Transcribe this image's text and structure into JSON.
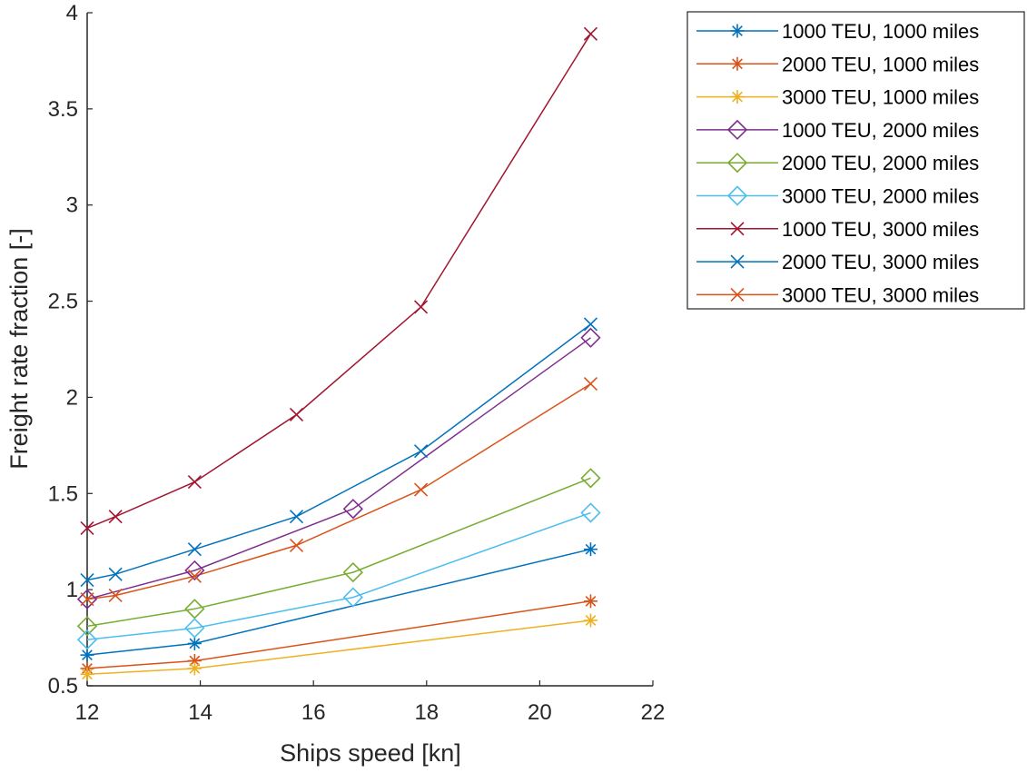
{
  "chart_data": {
    "type": "line",
    "title": "",
    "xlabel": "Ships speed [kn]",
    "ylabel": "Freight rate fraction [-]",
    "xlim": [
      12,
      22
    ],
    "ylim": [
      0.5,
      4
    ],
    "xticks": [
      12,
      14,
      16,
      18,
      20,
      22
    ],
    "yticks": [
      0.5,
      1,
      1.5,
      2,
      2.5,
      3,
      3.5,
      4
    ],
    "xtick_labels": [
      "12",
      "14",
      "16",
      "18",
      "20",
      "22"
    ],
    "ytick_labels": [
      "0.5",
      "1",
      "1.5",
      "2",
      "2.5",
      "3",
      "3.5",
      "4"
    ],
    "grid": false,
    "legend_position": "outside-top-right",
    "series": [
      {
        "name": "1000 TEU, 1000 miles",
        "color": "#0072BD",
        "marker": "asterisk",
        "x": [
          12,
          13.9,
          20.9
        ],
        "y": [
          0.66,
          0.72,
          1.21
        ]
      },
      {
        "name": "2000 TEU, 1000 miles",
        "color": "#D95319",
        "marker": "asterisk",
        "x": [
          12,
          13.9,
          20.9
        ],
        "y": [
          0.59,
          0.63,
          0.94
        ]
      },
      {
        "name": "3000 TEU, 1000 miles",
        "color": "#EDB120",
        "marker": "asterisk",
        "x": [
          12,
          13.9,
          20.9
        ],
        "y": [
          0.56,
          0.59,
          0.84
        ]
      },
      {
        "name": "1000 TEU, 2000 miles",
        "color": "#7E2F8E",
        "marker": "diamond",
        "x": [
          12,
          13.9,
          16.7,
          20.9
        ],
        "y": [
          0.95,
          1.1,
          1.42,
          2.31
        ]
      },
      {
        "name": "2000 TEU, 2000 miles",
        "color": "#77AC30",
        "marker": "diamond",
        "x": [
          12,
          13.9,
          16.7,
          20.9
        ],
        "y": [
          0.81,
          0.9,
          1.09,
          1.58
        ]
      },
      {
        "name": "3000 TEU, 2000 miles",
        "color": "#4DBEEE",
        "marker": "diamond",
        "x": [
          12,
          13.9,
          16.7,
          20.9
        ],
        "y": [
          0.74,
          0.8,
          0.96,
          1.4
        ]
      },
      {
        "name": "1000 TEU, 3000 miles",
        "color": "#A2142F",
        "marker": "x",
        "x": [
          12,
          12.5,
          13.9,
          15.7,
          17.9,
          20.9
        ],
        "y": [
          1.32,
          1.38,
          1.56,
          1.91,
          2.47,
          3.89
        ]
      },
      {
        "name": "2000 TEU, 3000 miles",
        "color": "#0072BD",
        "marker": "x",
        "x": [
          12,
          12.5,
          13.9,
          15.7,
          17.9,
          20.9
        ],
        "y": [
          1.05,
          1.08,
          1.21,
          1.38,
          1.72,
          2.38
        ]
      },
      {
        "name": "3000 TEU, 3000 miles",
        "color": "#D95319",
        "marker": "x",
        "x": [
          12,
          12.5,
          13.9,
          15.7,
          17.9,
          20.9
        ],
        "y": [
          0.95,
          0.97,
          1.07,
          1.23,
          1.52,
          2.07
        ]
      }
    ]
  }
}
